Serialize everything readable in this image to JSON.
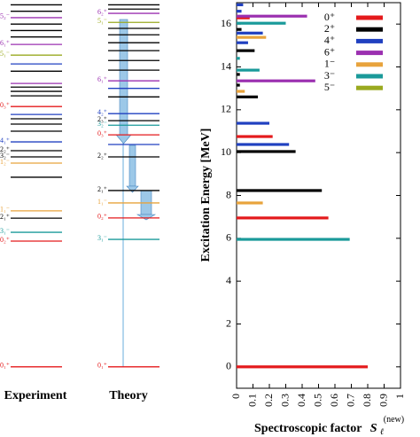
{
  "chart_data": [
    {
      "type": "levels",
      "columns": [
        {
          "name": "Experiment",
          "levels": [
            {
              "E": 0,
              "color": "#e41a1c",
              "label": "0₁⁺"
            },
            {
              "E": 5.87,
              "color": "#e41a1c",
              "label": "0₂⁺"
            },
            {
              "E": 6.28,
              "color": "#1a9a9a",
              "label": "3₁⁻"
            },
            {
              "E": 6.94,
              "color": "#000000",
              "label": "2₁⁺"
            },
            {
              "E": 7.28,
              "color": "#e8a33c",
              "label": "1₁⁻"
            },
            {
              "E": 8.85,
              "color": "#000000",
              "label": null
            },
            {
              "E": 9.51,
              "color": "#e8a33c",
              "label": "1₂⁻"
            },
            {
              "E": 9.8,
              "color": "#000000",
              "label": "3₂⁻"
            },
            {
              "E": 10.09,
              "color": "#000000",
              "label": "2₂⁺"
            },
            {
              "E": 10.5,
              "color": "#2040c0",
              "label": "4₁⁺"
            },
            {
              "E": 11.0,
              "color": "#000000",
              "label": null
            },
            {
              "E": 11.33,
              "color": "#000000",
              "label": null
            },
            {
              "E": 11.58,
              "color": "#000000",
              "label": null
            },
            {
              "E": 11.78,
              "color": "#2040c0",
              "label": null
            },
            {
              "E": 12.15,
              "color": "#e41a1c",
              "label": "0₃⁺"
            },
            {
              "E": 12.65,
              "color": "#000000",
              "label": null
            },
            {
              "E": 12.86,
              "color": "#000000",
              "label": null
            },
            {
              "E": 13.06,
              "color": "#000000",
              "label": null
            },
            {
              "E": 13.23,
              "color": "#9b30b0",
              "label": null
            },
            {
              "E": 13.8,
              "color": "#000000",
              "label": null
            },
            {
              "E": 14.14,
              "color": "#2040c0",
              "label": null
            },
            {
              "E": 14.55,
              "color": "#9aaa20",
              "label": "5₁⁻"
            },
            {
              "E": 15.05,
              "color": "#9b30b0",
              "label": "6₁⁺"
            },
            {
              "E": 15.4,
              "color": "#000000",
              "label": null
            },
            {
              "E": 15.7,
              "color": "#000000",
              "label": null
            },
            {
              "E": 16.0,
              "color": "#000000",
              "label": null
            },
            {
              "E": 16.3,
              "color": "#9b30b0",
              "label": "5₂⁻"
            },
            {
              "E": 16.6,
              "color": "#000000",
              "label": null
            },
            {
              "E": 16.9,
              "color": "#000000",
              "label": null
            }
          ]
        },
        {
          "name": "Theory",
          "levels": [
            {
              "E": 0,
              "color": "#e41a1c",
              "label": "0₁⁺"
            },
            {
              "E": 5.95,
              "color": "#1a9a9a",
              "label": "3₁⁻"
            },
            {
              "E": 6.95,
              "color": "#e41a1c",
              "label": "0₂⁺"
            },
            {
              "E": 7.65,
              "color": "#e8a33c",
              "label": "1₁⁻"
            },
            {
              "E": 8.23,
              "color": "#000000",
              "label": "2₁⁺"
            },
            {
              "E": 9.8,
              "color": "#000000",
              "label": "2₂⁺"
            },
            {
              "E": 10.38,
              "color": "#2040c0",
              "label": null
            },
            {
              "E": 10.83,
              "color": "#e41a1c",
              "label": "0₃⁺"
            },
            {
              "E": 11.28,
              "color": "#1a9a9a",
              "label": "3₂⁻"
            },
            {
              "E": 11.49,
              "color": "#000000",
              "label": "2₃⁺"
            },
            {
              "E": 11.82,
              "color": "#2040c0",
              "label": "4₂⁺"
            },
            {
              "E": 12.6,
              "color": "#000000",
              "label": null
            },
            {
              "E": 13.0,
              "color": "#2040c0",
              "label": null
            },
            {
              "E": 13.35,
              "color": "#9b30b0",
              "label": "6₁⁺"
            },
            {
              "E": 13.85,
              "color": "#000000",
              "label": null
            },
            {
              "E": 14.3,
              "color": "#000000",
              "label": null
            },
            {
              "E": 14.76,
              "color": "#000000",
              "label": null
            },
            {
              "E": 15.13,
              "color": "#000000",
              "label": null
            },
            {
              "E": 15.5,
              "color": "#000000",
              "label": null
            },
            {
              "E": 15.8,
              "color": "#000000",
              "label": null
            },
            {
              "E": 16.08,
              "color": "#9aaa20",
              "label": "5₁⁻"
            },
            {
              "E": 16.5,
              "color": "#9b30b0",
              "label": "6₂⁺"
            },
            {
              "E": 16.7,
              "color": "#000000",
              "label": null
            },
            {
              "E": 16.9,
              "color": "#000000",
              "label": null
            }
          ]
        }
      ],
      "ylim": [
        -1,
        17
      ]
    },
    {
      "type": "hbar",
      "ylabel": "Excitation Energy [MeV]",
      "xlabel": "Spectroscopic factor",
      "xlabel_symbol": "S",
      "xlabel_sub": "ℓ",
      "xlabel_sup": "(new)",
      "ylim": [
        -1,
        17
      ],
      "yticks": [
        0,
        2,
        4,
        6,
        8,
        10,
        12,
        14,
        16
      ],
      "xlim": [
        0,
        1
      ],
      "xticks": [
        0,
        0.1,
        0.2,
        0.3,
        0.4,
        0.5,
        0.6,
        0.7,
        0.8,
        0.9,
        1
      ],
      "series": [
        {
          "name": "0⁺",
          "color": "#e41a1c",
          "energies": [
            0,
            6.95,
            10.75,
            16.29
          ],
          "values": [
            0.8,
            0.56,
            0.22,
            0.08
          ]
        },
        {
          "name": "2⁺",
          "color": "#000000",
          "energies": [
            8.23,
            10.05,
            12.6,
            13.15,
            13.65,
            14.76,
            15.75
          ],
          "values": [
            0.52,
            0.36,
            0.13,
            0.02,
            0.02,
            0.11,
            0.03
          ]
        },
        {
          "name": "4⁺",
          "color": "#2040c0",
          "energies": [
            10.38,
            11.37,
            15.13,
            15.58,
            16.6,
            16.9
          ],
          "values": [
            0.32,
            0.2,
            0.07,
            0.16,
            0.03,
            0.04
          ]
        },
        {
          "name": "6⁺",
          "color": "#9b30b0",
          "energies": [
            13.35,
            16.37
          ],
          "values": [
            0.48,
            0.43
          ]
        },
        {
          "name": "1⁻",
          "color": "#e8a33c",
          "energies": [
            7.65,
            12.86,
            15.38
          ],
          "values": [
            0.16,
            0.05,
            0.18
          ]
        },
        {
          "name": "3⁻",
          "color": "#1a9a9a",
          "energies": [
            5.95,
            13.85,
            14.4,
            16.04
          ],
          "values": [
            0.69,
            0.14,
            0.02,
            0.3
          ]
        },
        {
          "name": "5⁻",
          "color": "#9aaa20",
          "energies": [],
          "values": []
        }
      ]
    }
  ]
}
